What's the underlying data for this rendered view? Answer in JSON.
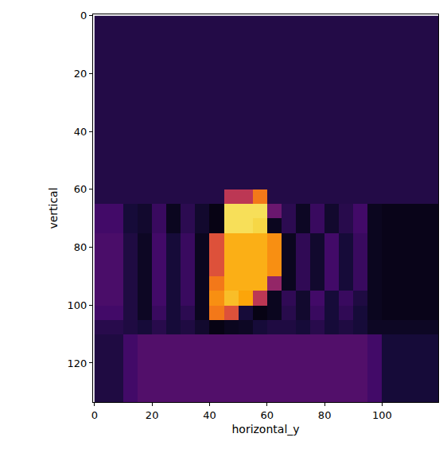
{
  "chart_data": {
    "type": "heatmap",
    "color": "inferno",
    "xlabel": "horizontal_y",
    "ylabel": "vertical",
    "xlim": [
      -0.5,
      119.5
    ],
    "ylim": [
      133.5,
      -0.5
    ],
    "xticks": [
      0,
      20,
      40,
      60,
      80,
      100
    ],
    "yticks": [
      0,
      20,
      40,
      60,
      80,
      100,
      120
    ],
    "zlim": [
      0,
      1
    ],
    "x": [
      2.5,
      7.5,
      12.5,
      17.5,
      22.5,
      27.5,
      32.5,
      37.5,
      42.5,
      47.5,
      52.5,
      57.5,
      62.5,
      67.5,
      72.5,
      77.5,
      82.5,
      87.5,
      92.5,
      97.5,
      102.5,
      107.5,
      112.5,
      117.5
    ],
    "y": [
      2.5,
      7.5,
      12.5,
      17.5,
      22.5,
      27.5,
      32.5,
      37.5,
      42.5,
      47.5,
      52.5,
      57.5,
      62.5,
      67.5,
      72.5,
      77.5,
      82.5,
      87.5,
      92.5,
      97.5,
      102.5,
      107.5,
      112.5,
      117.5,
      122.5,
      127.5,
      132.5
    ],
    "cells": [
      [
        0.13,
        0.13,
        0.13,
        0.13,
        0.13,
        0.13,
        0.13,
        0.13,
        0.13,
        0.13,
        0.13,
        0.13,
        0.13,
        0.13,
        0.13,
        0.13,
        0.13,
        0.13,
        0.13,
        0.13,
        0.13,
        0.13,
        0.13,
        0.13
      ],
      [
        0.13,
        0.13,
        0.13,
        0.13,
        0.13,
        0.13,
        0.13,
        0.13,
        0.13,
        0.13,
        0.13,
        0.13,
        0.13,
        0.13,
        0.13,
        0.13,
        0.13,
        0.13,
        0.13,
        0.13,
        0.13,
        0.13,
        0.13,
        0.13
      ],
      [
        0.13,
        0.13,
        0.13,
        0.13,
        0.13,
        0.13,
        0.13,
        0.13,
        0.13,
        0.13,
        0.13,
        0.13,
        0.13,
        0.13,
        0.13,
        0.13,
        0.13,
        0.13,
        0.13,
        0.13,
        0.13,
        0.13,
        0.13,
        0.13
      ],
      [
        0.13,
        0.13,
        0.13,
        0.13,
        0.13,
        0.13,
        0.13,
        0.13,
        0.13,
        0.13,
        0.13,
        0.13,
        0.13,
        0.13,
        0.13,
        0.13,
        0.13,
        0.13,
        0.13,
        0.13,
        0.13,
        0.13,
        0.13,
        0.13
      ],
      [
        0.13,
        0.13,
        0.13,
        0.13,
        0.13,
        0.13,
        0.13,
        0.13,
        0.13,
        0.13,
        0.13,
        0.13,
        0.13,
        0.13,
        0.13,
        0.13,
        0.13,
        0.13,
        0.13,
        0.13,
        0.13,
        0.13,
        0.13,
        0.13
      ],
      [
        0.13,
        0.13,
        0.13,
        0.13,
        0.13,
        0.13,
        0.13,
        0.13,
        0.13,
        0.13,
        0.13,
        0.13,
        0.13,
        0.13,
        0.13,
        0.13,
        0.13,
        0.13,
        0.13,
        0.13,
        0.13,
        0.13,
        0.13,
        0.13
      ],
      [
        0.13,
        0.13,
        0.13,
        0.13,
        0.13,
        0.13,
        0.13,
        0.13,
        0.13,
        0.13,
        0.13,
        0.13,
        0.13,
        0.13,
        0.13,
        0.13,
        0.13,
        0.13,
        0.13,
        0.13,
        0.13,
        0.13,
        0.13,
        0.13
      ],
      [
        0.13,
        0.13,
        0.13,
        0.13,
        0.13,
        0.13,
        0.13,
        0.13,
        0.13,
        0.13,
        0.13,
        0.13,
        0.13,
        0.13,
        0.13,
        0.13,
        0.13,
        0.13,
        0.13,
        0.13,
        0.13,
        0.13,
        0.13,
        0.13
      ],
      [
        0.13,
        0.13,
        0.13,
        0.13,
        0.13,
        0.13,
        0.13,
        0.13,
        0.13,
        0.13,
        0.13,
        0.13,
        0.13,
        0.13,
        0.13,
        0.13,
        0.13,
        0.13,
        0.13,
        0.13,
        0.13,
        0.13,
        0.13,
        0.13
      ],
      [
        0.13,
        0.13,
        0.13,
        0.13,
        0.13,
        0.13,
        0.13,
        0.13,
        0.13,
        0.13,
        0.13,
        0.13,
        0.13,
        0.13,
        0.13,
        0.13,
        0.13,
        0.13,
        0.13,
        0.13,
        0.13,
        0.13,
        0.13,
        0.13
      ],
      [
        0.13,
        0.13,
        0.13,
        0.13,
        0.13,
        0.13,
        0.13,
        0.13,
        0.13,
        0.13,
        0.13,
        0.13,
        0.13,
        0.13,
        0.13,
        0.13,
        0.13,
        0.13,
        0.13,
        0.13,
        0.13,
        0.13,
        0.13,
        0.13
      ],
      [
        0.13,
        0.13,
        0.13,
        0.13,
        0.13,
        0.13,
        0.13,
        0.13,
        0.13,
        0.13,
        0.13,
        0.13,
        0.13,
        0.13,
        0.13,
        0.13,
        0.13,
        0.13,
        0.13,
        0.13,
        0.13,
        0.13,
        0.13,
        0.13
      ],
      [
        0.13,
        0.13,
        0.13,
        0.13,
        0.13,
        0.13,
        0.13,
        0.13,
        0.13,
        0.5,
        0.5,
        0.7,
        0.13,
        0.13,
        0.13,
        0.13,
        0.13,
        0.13,
        0.13,
        0.13,
        0.13,
        0.13,
        0.13,
        0.13
      ],
      [
        0.2,
        0.2,
        0.1,
        0.08,
        0.18,
        0.05,
        0.15,
        0.08,
        0.03,
        0.92,
        0.92,
        0.92,
        0.3,
        0.15,
        0.06,
        0.18,
        0.08,
        0.14,
        0.2,
        0.05,
        0.04,
        0.04,
        0.04,
        0.04
      ],
      [
        0.2,
        0.2,
        0.1,
        0.08,
        0.18,
        0.05,
        0.15,
        0.08,
        0.03,
        0.92,
        0.92,
        0.9,
        0.05,
        0.15,
        0.06,
        0.18,
        0.08,
        0.14,
        0.2,
        0.05,
        0.04,
        0.04,
        0.04,
        0.04
      ],
      [
        0.22,
        0.22,
        0.12,
        0.06,
        0.2,
        0.1,
        0.18,
        0.05,
        0.6,
        0.82,
        0.82,
        0.82,
        0.75,
        0.05,
        0.16,
        0.08,
        0.2,
        0.1,
        0.18,
        0.05,
        0.04,
        0.04,
        0.04,
        0.04
      ],
      [
        0.22,
        0.22,
        0.12,
        0.06,
        0.2,
        0.1,
        0.18,
        0.05,
        0.6,
        0.82,
        0.82,
        0.82,
        0.75,
        0.05,
        0.16,
        0.08,
        0.2,
        0.1,
        0.18,
        0.05,
        0.04,
        0.04,
        0.04,
        0.04
      ],
      [
        0.22,
        0.22,
        0.12,
        0.06,
        0.2,
        0.1,
        0.18,
        0.05,
        0.6,
        0.82,
        0.82,
        0.82,
        0.75,
        0.05,
        0.16,
        0.08,
        0.2,
        0.1,
        0.18,
        0.05,
        0.04,
        0.04,
        0.04,
        0.04
      ],
      [
        0.22,
        0.22,
        0.12,
        0.06,
        0.2,
        0.1,
        0.18,
        0.05,
        0.7,
        0.82,
        0.82,
        0.82,
        0.4,
        0.05,
        0.16,
        0.08,
        0.2,
        0.1,
        0.18,
        0.05,
        0.04,
        0.04,
        0.04,
        0.04
      ],
      [
        0.22,
        0.22,
        0.12,
        0.06,
        0.2,
        0.1,
        0.18,
        0.05,
        0.75,
        0.85,
        0.8,
        0.5,
        0.05,
        0.16,
        0.08,
        0.2,
        0.1,
        0.18,
        0.12,
        0.05,
        0.04,
        0.04,
        0.04,
        0.04
      ],
      [
        0.2,
        0.2,
        0.12,
        0.06,
        0.18,
        0.1,
        0.15,
        0.05,
        0.7,
        0.6,
        0.1,
        0.03,
        0.05,
        0.14,
        0.08,
        0.18,
        0.1,
        0.16,
        0.1,
        0.05,
        0.04,
        0.04,
        0.04,
        0.04
      ],
      [
        0.14,
        0.14,
        0.12,
        0.1,
        0.14,
        0.1,
        0.12,
        0.08,
        0.03,
        0.05,
        0.06,
        0.1,
        0.12,
        0.12,
        0.1,
        0.14,
        0.1,
        0.12,
        0.1,
        0.06,
        0.06,
        0.06,
        0.06,
        0.06
      ],
      [
        0.12,
        0.12,
        0.2,
        0.24,
        0.24,
        0.24,
        0.24,
        0.24,
        0.24,
        0.24,
        0.24,
        0.24,
        0.24,
        0.24,
        0.24,
        0.24,
        0.24,
        0.24,
        0.24,
        0.2,
        0.1,
        0.1,
        0.1,
        0.1
      ],
      [
        0.12,
        0.12,
        0.2,
        0.24,
        0.24,
        0.24,
        0.24,
        0.24,
        0.24,
        0.24,
        0.24,
        0.24,
        0.24,
        0.24,
        0.24,
        0.24,
        0.24,
        0.24,
        0.24,
        0.2,
        0.1,
        0.1,
        0.1,
        0.1
      ],
      [
        0.12,
        0.12,
        0.2,
        0.24,
        0.24,
        0.24,
        0.24,
        0.24,
        0.24,
        0.24,
        0.24,
        0.24,
        0.24,
        0.24,
        0.24,
        0.24,
        0.24,
        0.24,
        0.24,
        0.2,
        0.1,
        0.1,
        0.1,
        0.1
      ],
      [
        0.12,
        0.12,
        0.2,
        0.24,
        0.24,
        0.24,
        0.24,
        0.24,
        0.24,
        0.24,
        0.24,
        0.24,
        0.24,
        0.24,
        0.24,
        0.24,
        0.24,
        0.24,
        0.24,
        0.2,
        0.1,
        0.1,
        0.1,
        0.1
      ],
      [
        0.12,
        0.12,
        0.2,
        0.24,
        0.24,
        0.24,
        0.24,
        0.24,
        0.24,
        0.24,
        0.24,
        0.24,
        0.24,
        0.24,
        0.24,
        0.24,
        0.24,
        0.24,
        0.24,
        0.2,
        0.1,
        0.1,
        0.1,
        0.1
      ]
    ]
  }
}
